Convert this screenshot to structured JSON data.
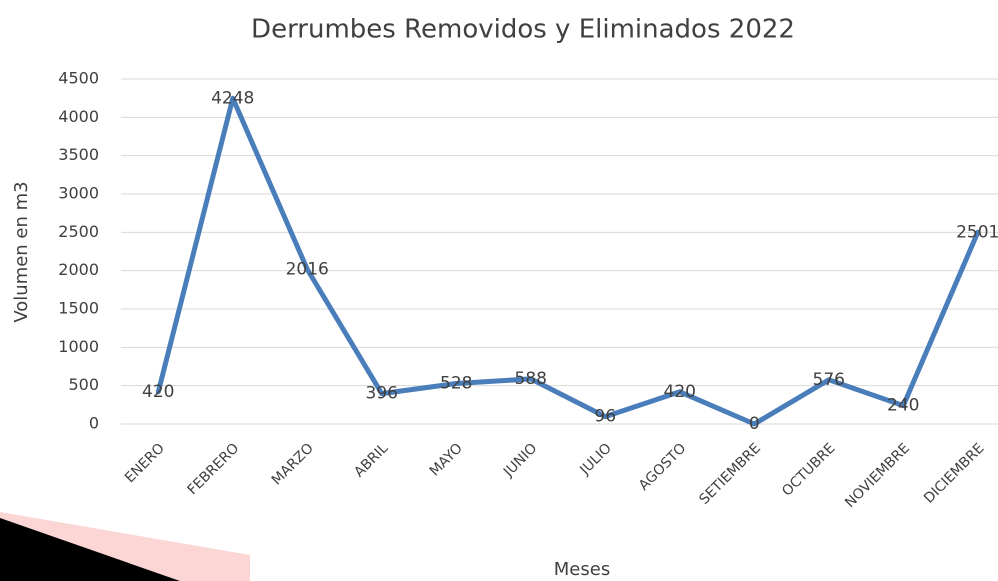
{
  "chart_data": {
    "type": "line",
    "title": "Derrumbes Removidos y Eliminados 2022",
    "x_label": "Meses",
    "y_label": "Volumen en m3",
    "categories": [
      "ENERO",
      "FEBRERO",
      "MARZO",
      "ABRIL",
      "MAYO",
      "JUNIO",
      "JULIO",
      "AGOSTO",
      "SETIEMBRE",
      "OCTUBRE",
      "NOVIEMBRE",
      "DICIEMBRE"
    ],
    "values": [
      420,
      4248,
      2016,
      396,
      528,
      588,
      96,
      420,
      0,
      576,
      240,
      2501
    ],
    "color": "#4a7ebb",
    "ylim": [
      0,
      4500
    ],
    "yticks": [
      0,
      500,
      1000,
      1500,
      2000,
      2500,
      3000,
      3500,
      4000,
      4500
    ],
    "grid": true
  }
}
